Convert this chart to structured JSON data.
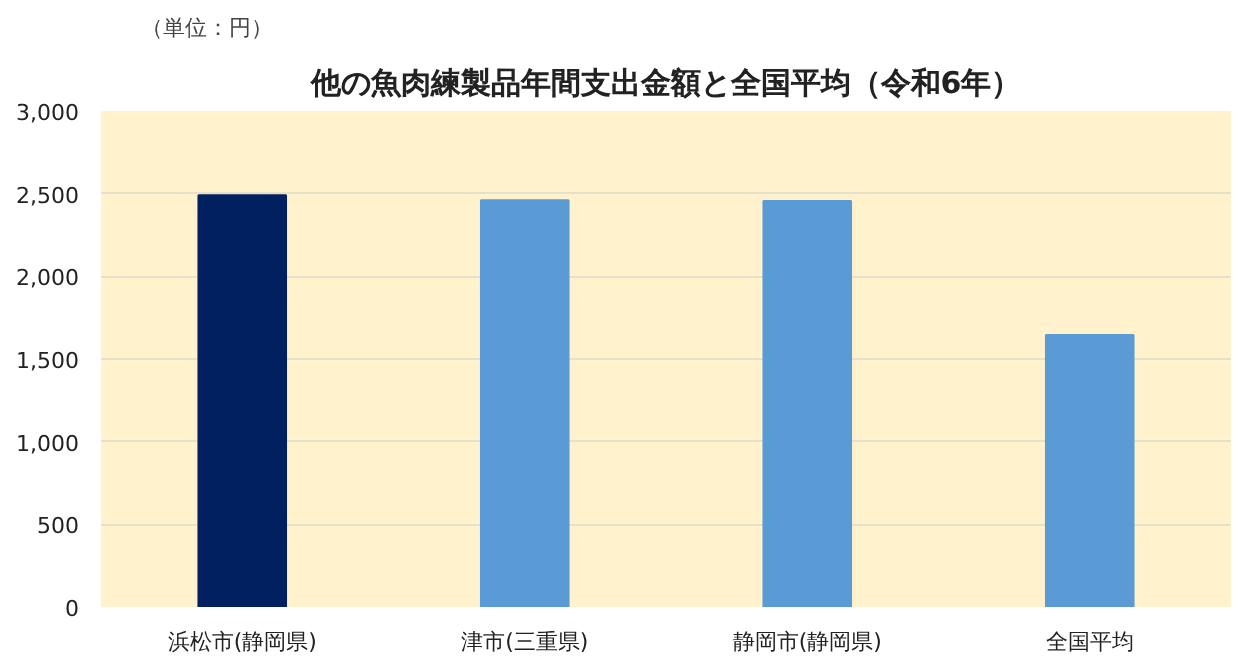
{
  "chart_data": {
    "type": "bar",
    "title": "他の魚肉練製品年間支出金額と全国平均（令和6年）",
    "annotations": [
      "（単位：円）"
    ],
    "categories": [
      "浜松市(静岡県)",
      "津市(三重県)",
      "静岡市(静岡県)",
      "全国平均"
    ],
    "values": [
      2490,
      2460,
      2455,
      1645
    ],
    "colors": [
      "#002060",
      "#5b9bd5",
      "#5b9bd5",
      "#5b9bd5"
    ],
    "ylim": [
      0,
      3000
    ],
    "yticks": [
      0,
      500,
      {
        "value": 1000,
        "label": "1,000"
      },
      {
        "value": 1500,
        "label": "1,500"
      },
      {
        "value": 2000,
        "label": "2,000"
      },
      {
        "value": 2500,
        "label": "2,500"
      },
      {
        "value": 3000,
        "label": "3,000"
      }
    ],
    "grid": "y"
  }
}
